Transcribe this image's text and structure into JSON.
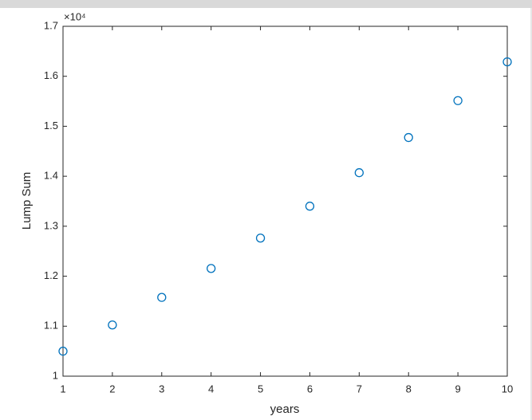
{
  "chart_data": {
    "type": "scatter",
    "xlabel": "years",
    "ylabel": "Lump Sum",
    "y_multiplier": "×10⁴",
    "x": [
      1,
      2,
      3,
      4,
      5,
      6,
      7,
      8,
      9,
      10
    ],
    "series": [
      {
        "color": "#0072bd",
        "values": [
          10500,
          11025,
          11576,
          12155,
          12763,
          13401,
          14071,
          14775,
          15513,
          16289
        ]
      }
    ],
    "xlim": [
      1,
      10
    ],
    "xticks": [
      1,
      2,
      3,
      4,
      5,
      6,
      7,
      8,
      9,
      10
    ],
    "ylim": [
      10000,
      17000
    ],
    "yticks": [
      {
        "value": 10000,
        "label": "1"
      },
      {
        "value": 11000,
        "label": "1.1"
      },
      {
        "value": 12000,
        "label": "1.2"
      },
      {
        "value": 13000,
        "label": "1.3"
      },
      {
        "value": 14000,
        "label": "1.4"
      },
      {
        "value": 15000,
        "label": "1.5"
      },
      {
        "value": 16000,
        "label": "1.6"
      },
      {
        "value": 17000,
        "label": "1.7"
      }
    ],
    "grid": false
  }
}
